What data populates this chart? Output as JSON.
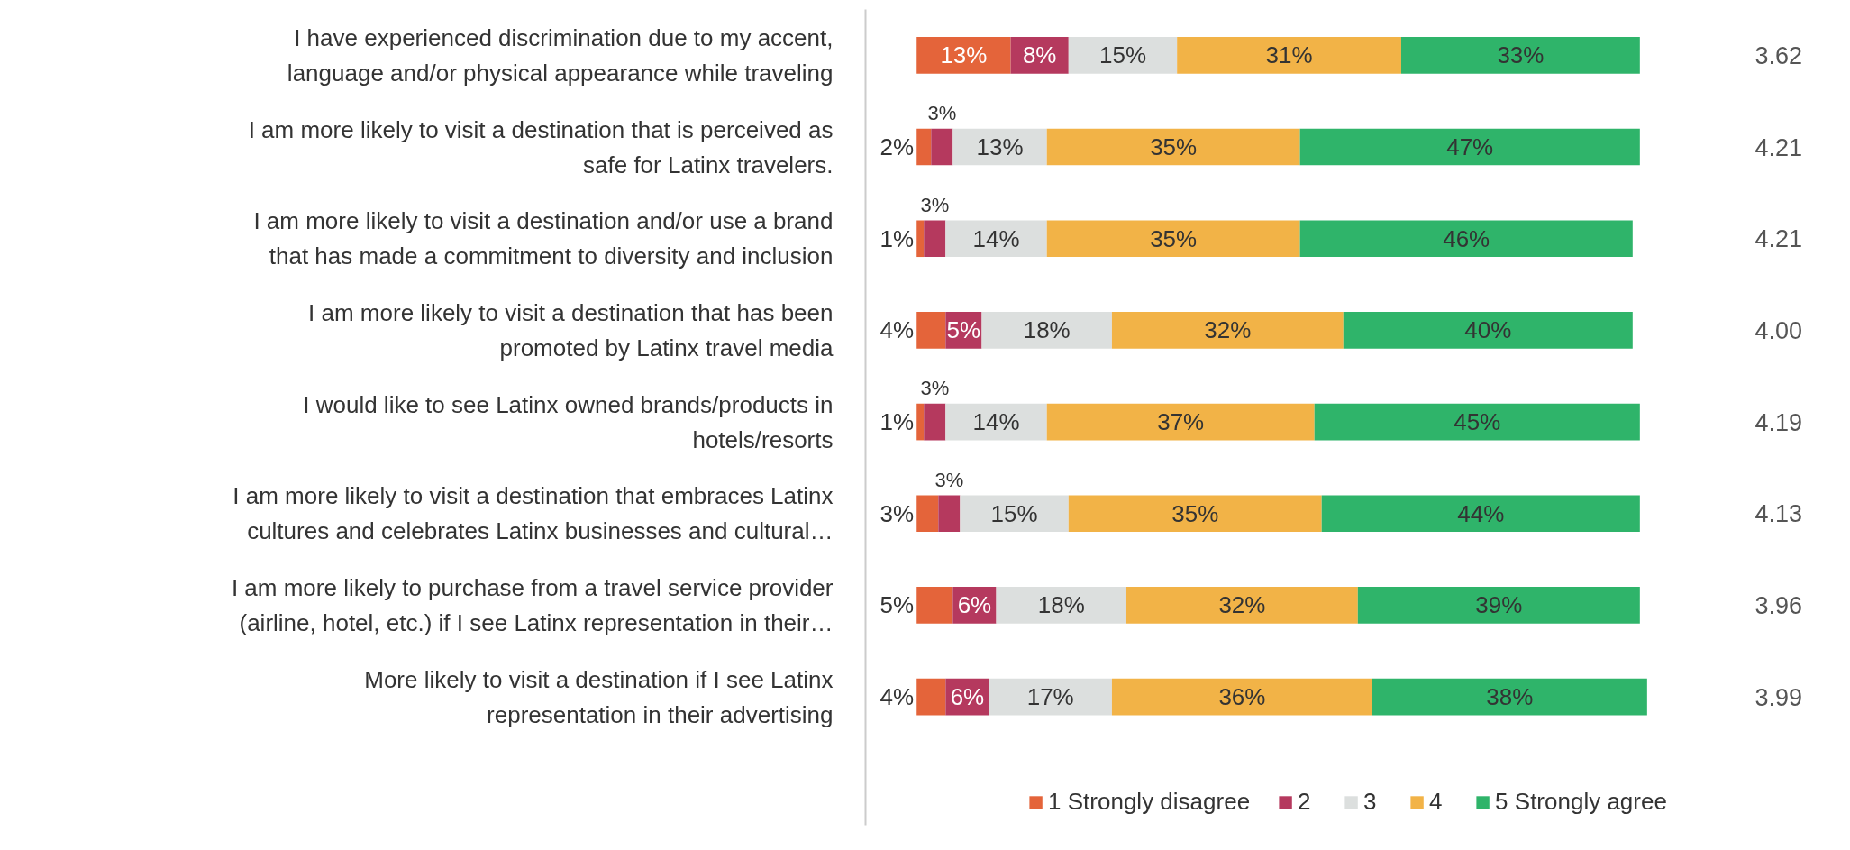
{
  "chart_data": {
    "type": "bar",
    "orientation": "horizontal",
    "stacked": true,
    "categories": [
      "I have experienced discrimination due to my accent,\nlanguage and/or physical appearance while traveling",
      "I am more likely to visit a destination that is perceived as\nsafe for Latinx travelers.",
      "I am more likely to visit a destination and/or use a brand\nthat has made a commitment to diversity and inclusion",
      "I am more likely to visit a destination that has been\npromoted by Latinx travel media",
      "I would like to see Latinx owned brands/products in\nhotels/resorts",
      "I am more likely to visit a destination that embraces Latinx\ncultures and celebrates Latinx businesses and cultural…",
      "I am more likely to purchase from a travel service provider\n(airline, hotel, etc.) if I see Latinx representation in their…",
      "More likely to visit a destination if I see Latinx\nrepresentation in their advertising"
    ],
    "series": [
      {
        "name": "1 Strongly disagree",
        "color": "#e4643a",
        "values": [
          13,
          2,
          1,
          4,
          1,
          3,
          5,
          4
        ],
        "value_labels": [
          "13%",
          "2%",
          "1%",
          "4%",
          "1%",
          "3%",
          "5%",
          "4%"
        ]
      },
      {
        "name": "2",
        "color": "#b5395e",
        "values": [
          8,
          3,
          3,
          5,
          3,
          3,
          6,
          6
        ],
        "value_labels": [
          "8%",
          "3%",
          "3%",
          "5%",
          "3%",
          "3%",
          "6%",
          "6%"
        ]
      },
      {
        "name": "3",
        "color": "#dcdfde",
        "values": [
          15,
          13,
          14,
          18,
          14,
          15,
          18,
          17
        ],
        "value_labels": [
          "15%",
          "13%",
          "14%",
          "18%",
          "14%",
          "15%",
          "18%",
          "17%"
        ]
      },
      {
        "name": "4",
        "color": "#f2b347",
        "values": [
          31,
          35,
          35,
          32,
          37,
          35,
          32,
          36
        ],
        "value_labels": [
          "31%",
          "35%",
          "35%",
          "32%",
          "37%",
          "35%",
          "32%",
          "36%"
        ]
      },
      {
        "name": "5 Strongly agree",
        "color": "#2fb46a",
        "values": [
          33,
          47,
          46,
          40,
          45,
          44,
          39,
          38
        ],
        "value_labels": [
          "33%",
          "47%",
          "46%",
          "40%",
          "45%",
          "44%",
          "39%",
          "38%"
        ]
      }
    ],
    "tick_labels": "y",
    "grid": false,
    "legend": "bottom",
    "annotations": [
      "3.62",
      "4.21",
      "4.21",
      "4.00",
      "4.19",
      "4.13",
      "3.96",
      "3.99"
    ]
  }
}
